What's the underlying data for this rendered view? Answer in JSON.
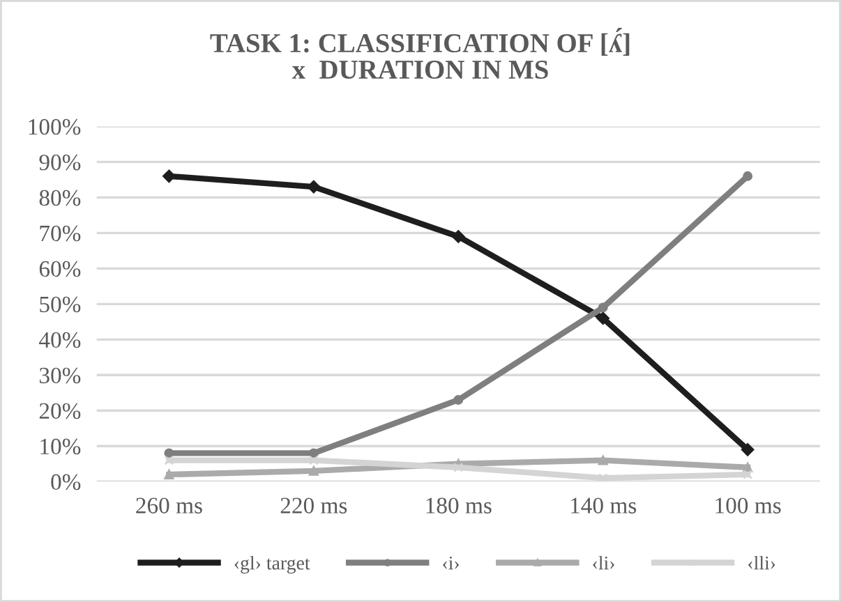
{
  "chart_data": {
    "type": "line",
    "title": "TASK 1: CLASSIFICATION OF [ʎ́]\nx  DURATION IN MS",
    "categories": [
      "260 ms",
      "220 ms",
      "180 ms",
      "140 ms",
      "100 ms"
    ],
    "series": [
      {
        "name": "‹gl› target",
        "color": "#1e1e1e",
        "marker": "diamond",
        "values": [
          86,
          83,
          69,
          46,
          9
        ]
      },
      {
        "name": "‹i›",
        "color": "#7f7f7f",
        "marker": "circle",
        "values": [
          8,
          8,
          23,
          49,
          86
        ]
      },
      {
        "name": "‹li›",
        "color": "#aaaaaa",
        "marker": "triangle",
        "values": [
          2,
          3,
          5,
          6,
          4
        ]
      },
      {
        "name": "‹lli›",
        "color": "#d4d4d4",
        "marker": "cross",
        "values": [
          6,
          6,
          4,
          1,
          2
        ]
      }
    ],
    "ylim": [
      0,
      100
    ],
    "yticks": [
      {
        "value": 0,
        "label": "0%"
      },
      {
        "value": 10,
        "label": "10%"
      },
      {
        "value": 20,
        "label": "20%"
      },
      {
        "value": 30,
        "label": "30%"
      },
      {
        "value": 40,
        "label": "40%"
      },
      {
        "value": 50,
        "label": "50%"
      },
      {
        "value": 60,
        "label": "60%"
      },
      {
        "value": 70,
        "label": "70%"
      },
      {
        "value": 80,
        "label": "80%"
      },
      {
        "value": 90,
        "label": "90%"
      },
      {
        "value": 100,
        "label": "100%"
      }
    ],
    "grid": "y",
    "legend": "bottom",
    "line_style": "solid"
  }
}
